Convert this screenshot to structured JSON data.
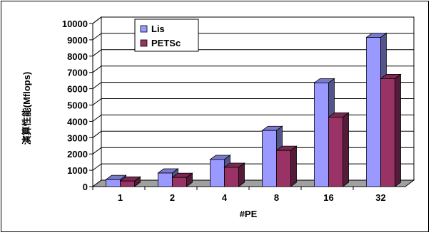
{
  "chart_data": {
    "type": "bar",
    "title": "",
    "xlabel": "#PE",
    "ylabel": "演算性能(Mflops)",
    "categories": [
      "1",
      "2",
      "4",
      "8",
      "16",
      "32"
    ],
    "series": [
      {
        "name": "Lis",
        "values": [
          430,
          830,
          1660,
          3440,
          6360,
          9150
        ],
        "color": "#9999ff"
      },
      {
        "name": "PETSc",
        "values": [
          340,
          560,
          1180,
          2220,
          4260,
          6620
        ],
        "color": "#993366"
      }
    ],
    "ylim": [
      0,
      10000
    ],
    "yticks": [
      "0",
      "1000",
      "2000",
      "3000",
      "4000",
      "5000",
      "6000",
      "7000",
      "8000",
      "9000",
      "10000"
    ],
    "grid": true,
    "legend": "top-left"
  }
}
